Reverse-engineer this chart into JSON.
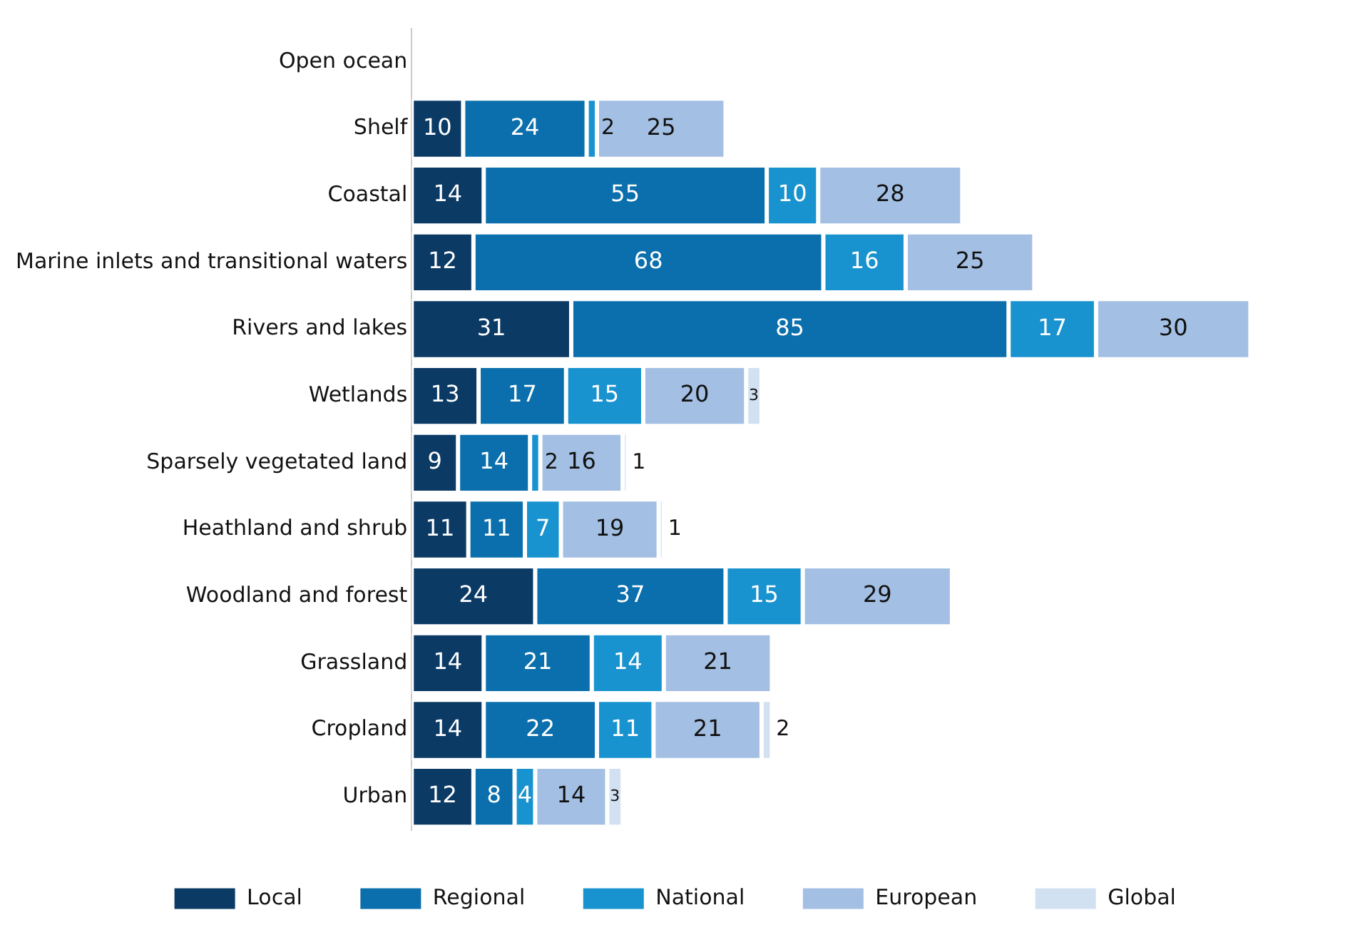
{
  "chart_data": {
    "type": "bar",
    "orientation": "horizontal",
    "stacked": true,
    "legend": "bottom",
    "grid": false,
    "categories": [
      "Open ocean",
      "Shelf",
      "Coastal",
      "Marine inlets and transitional waters",
      "Rivers and lakes",
      "Wetlands",
      "Sparsely vegetated land",
      "Heathland and shrub",
      "Woodland and forest",
      "Grassland",
      "Cropland",
      "Urban"
    ],
    "series": [
      {
        "name": "Local",
        "color": "#0b3a65",
        "values": [
          null,
          10,
          14,
          12,
          31,
          13,
          9,
          11,
          24,
          14,
          14,
          12
        ],
        "value_labels": [
          null,
          "10",
          "14",
          "12",
          "31",
          "13",
          "9",
          "11",
          "24",
          "14",
          "14",
          "12"
        ]
      },
      {
        "name": "Regional",
        "color": "#0a6fac",
        "values": [
          null,
          24,
          55,
          68,
          85,
          17,
          14,
          11,
          37,
          21,
          22,
          8
        ],
        "value_labels": [
          null,
          "24",
          "55",
          "68",
          "85",
          "17",
          "14",
          "11",
          "37",
          "21",
          "22",
          "8"
        ]
      },
      {
        "name": "National",
        "color": "#1993cf",
        "values": [
          null,
          2,
          10,
          16,
          17,
          15,
          2,
          7,
          15,
          14,
          11,
          4
        ],
        "value_labels": [
          null,
          "2",
          "10",
          "16",
          "17",
          "15",
          "2",
          "7",
          "15",
          "14",
          "11",
          "4"
        ]
      },
      {
        "name": "European",
        "color": "#a3bfe3",
        "values": [
          null,
          25,
          28,
          25,
          30,
          20,
          16,
          19,
          29,
          21,
          21,
          14
        ],
        "value_labels": [
          null,
          "25",
          "28",
          "25",
          "30",
          "20",
          "16",
          "19",
          "29",
          "21",
          "21",
          "14"
        ]
      },
      {
        "name": "Global",
        "color": "#d2e1f1",
        "values": [
          null,
          null,
          null,
          null,
          null,
          3,
          1,
          1,
          null,
          null,
          2,
          3
        ],
        "value_labels": [
          null,
          null,
          null,
          null,
          null,
          "3",
          "1",
          "1",
          null,
          null,
          "2",
          "3"
        ]
      }
    ]
  }
}
